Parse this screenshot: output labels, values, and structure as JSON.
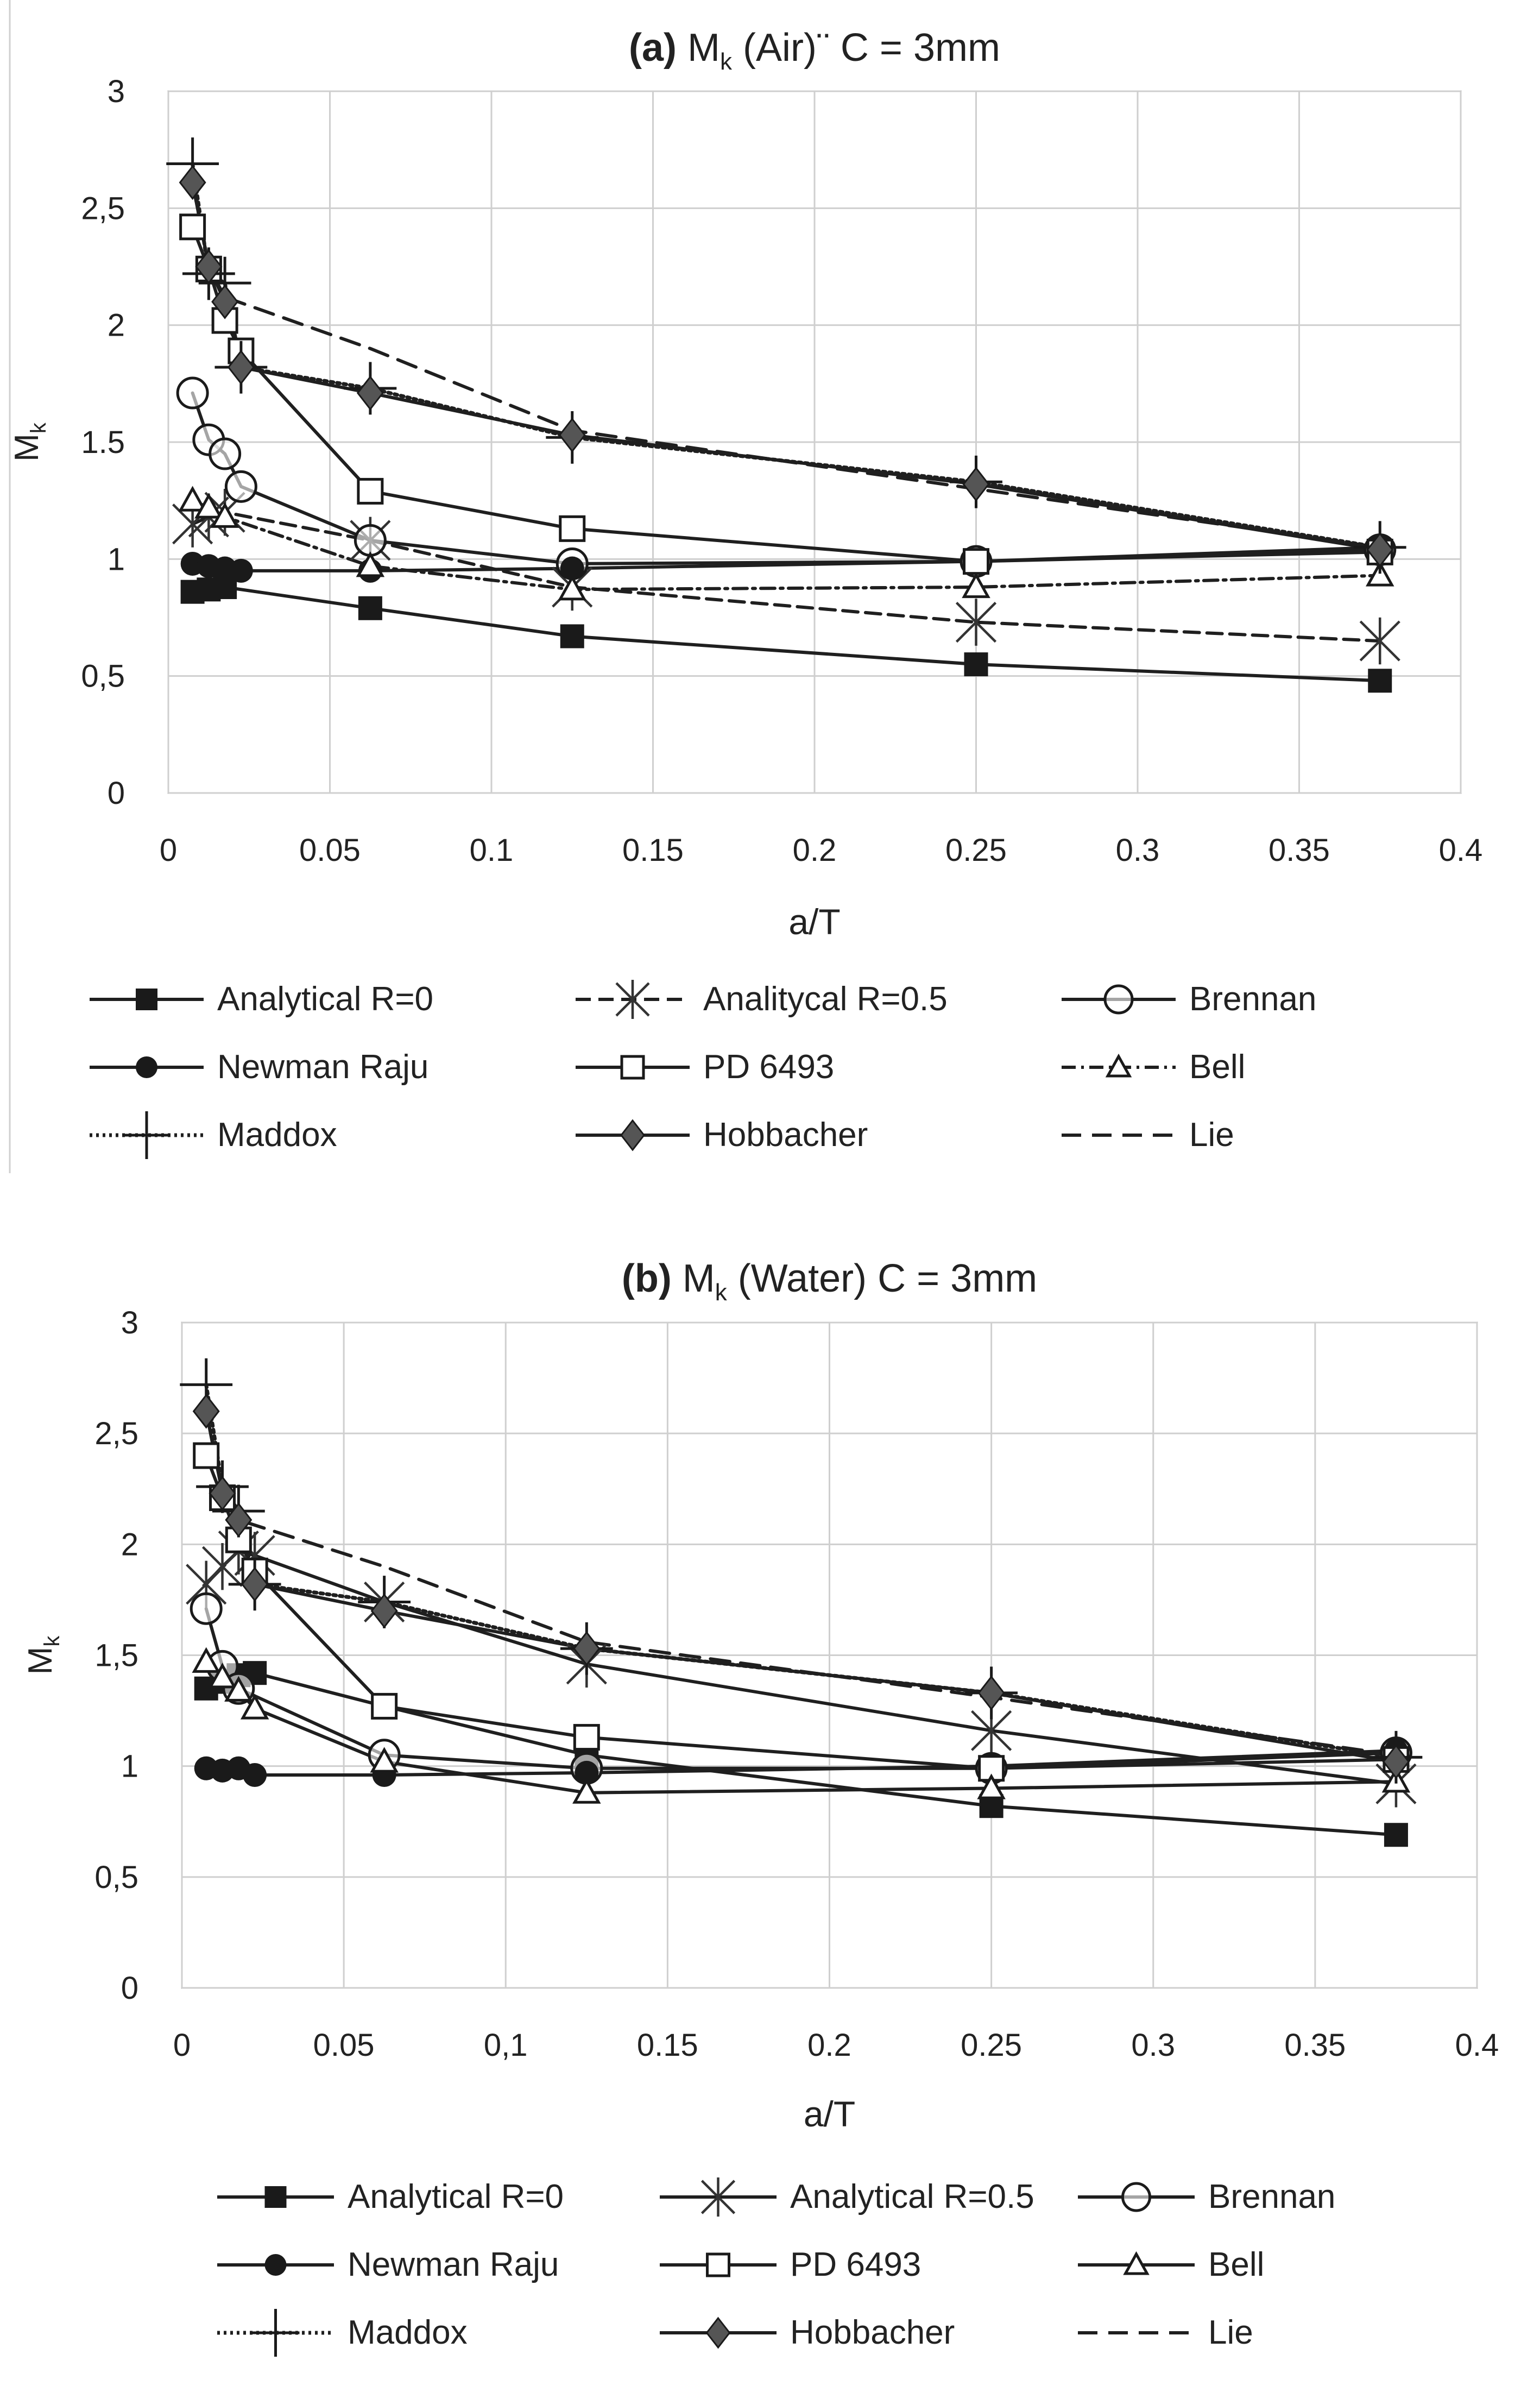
{
  "chart_data": [
    {
      "type": "line",
      "panel_label": "(a)",
      "title_main": "M",
      "title_sub": "k",
      "title_rest": "(Air)¨ C = 3mm",
      "xlabel": "a/T",
      "ylabel_main": "M",
      "ylabel_sub": "k",
      "xlim": [
        0,
        0.4
      ],
      "ylim": [
        0,
        3
      ],
      "xticks": [
        "0",
        "0.05",
        "0.1",
        "0.15",
        "0.2",
        "0.25",
        "0.3",
        "0.35",
        "0.4"
      ],
      "yticks": [
        "0",
        "0,5",
        "1",
        "1.5",
        "2",
        "2,5",
        "3"
      ],
      "grid": true,
      "series": [
        {
          "name": "Analytical R=0",
          "style": "solid",
          "marker": "square-filled",
          "x": [
            0.0075,
            0.0125,
            0.0175,
            0.0625,
            0.125,
            0.25,
            0.375
          ],
          "y": [
            0.86,
            0.87,
            0.88,
            0.79,
            0.67,
            0.55,
            0.48
          ]
        },
        {
          "name": "Analitycal R=0.5",
          "style": "dashed",
          "marker": "asterisk",
          "x": [
            0.0075,
            0.0125,
            0.0175,
            0.0625,
            0.125,
            0.25,
            0.375
          ],
          "y": [
            1.15,
            1.18,
            1.2,
            1.08,
            0.88,
            0.73,
            0.65
          ]
        },
        {
          "name": "Brennan",
          "style": "solid",
          "marker": "circle-open",
          "x": [
            0.0075,
            0.0125,
            0.0175,
            0.0225,
            0.0625,
            0.125,
            0.25,
            0.375
          ],
          "y": [
            1.71,
            1.51,
            1.45,
            1.31,
            1.08,
            0.98,
            0.99,
            1.04
          ]
        },
        {
          "name": "Newman Raju",
          "style": "solid",
          "marker": "circle-filled",
          "x": [
            0.0075,
            0.0125,
            0.0175,
            0.0225,
            0.0625,
            0.125,
            0.25,
            0.375
          ],
          "y": [
            0.98,
            0.97,
            0.96,
            0.95,
            0.95,
            0.96,
            0.99,
            1.05
          ]
        },
        {
          "name": "PD 6493",
          "style": "solid",
          "marker": "square-open",
          "x": [
            0.0075,
            0.0125,
            0.0175,
            0.0225,
            0.0625,
            0.125,
            0.25,
            0.375
          ],
          "y": [
            2.42,
            2.24,
            2.02,
            1.89,
            1.29,
            1.13,
            0.99,
            1.03
          ]
        },
        {
          "name": "Bell",
          "style": "dashdot",
          "marker": "triangle-open",
          "x": [
            0.0075,
            0.0125,
            0.0175,
            0.0625,
            0.125,
            0.25,
            0.375
          ],
          "y": [
            1.25,
            1.22,
            1.18,
            0.97,
            0.87,
            0.88,
            0.93
          ]
        },
        {
          "name": "Maddox",
          "style": "dotted",
          "marker": "plus",
          "x": [
            0.0075,
            0.0125,
            0.0175,
            0.0225,
            0.0625,
            0.125,
            0.25,
            0.375
          ],
          "y": [
            2.69,
            2.22,
            2.18,
            1.82,
            1.73,
            1.52,
            1.33,
            1.05
          ]
        },
        {
          "name": "Hobbacher",
          "style": "solid",
          "marker": "diamond-filled",
          "x": [
            0.0075,
            0.0125,
            0.0175,
            0.0225,
            0.0625,
            0.125,
            0.25,
            0.375
          ],
          "y": [
            2.61,
            2.25,
            2.1,
            1.82,
            1.71,
            1.53,
            1.32,
            1.04
          ]
        },
        {
          "name": "Lie",
          "style": "dashed-long",
          "marker": "none",
          "x": [
            0.0075,
            0.0125,
            0.0175,
            0.0625,
            0.125,
            0.25,
            0.375
          ],
          "y": [
            2.61,
            2.25,
            2.12,
            1.9,
            1.55,
            1.3,
            1.05
          ]
        }
      ]
    },
    {
      "type": "line",
      "panel_label": "(b)",
      "title_main": "M",
      "title_sub": "k",
      "title_rest": "(Water)  C = 3mm",
      "xlabel": "a/T",
      "ylabel_main": "M",
      "ylabel_sub": "k",
      "xlim": [
        0,
        0.4
      ],
      "ylim": [
        0,
        3
      ],
      "xticks": [
        "0",
        "0.05",
        "0,1",
        "0.15",
        "0.2",
        "0.25",
        "0.3",
        "0.35",
        "0.4"
      ],
      "yticks": [
        "0",
        "0,5",
        "1",
        "1,5",
        "2",
        "2,5",
        "3"
      ],
      "grid": true,
      "series": [
        {
          "name": "Analytical R=0",
          "style": "solid",
          "marker": "square-filled",
          "x": [
            0.0075,
            0.0125,
            0.0175,
            0.0225,
            0.0625,
            0.125,
            0.25,
            0.375
          ],
          "y": [
            1.35,
            1.38,
            1.41,
            1.42,
            1.27,
            1.05,
            0.82,
            0.69
          ]
        },
        {
          "name": "Analytical R=0.5",
          "style": "solid",
          "marker": "asterisk",
          "x": [
            0.0075,
            0.0125,
            0.0175,
            0.0225,
            0.0625,
            0.125,
            0.25,
            0.375
          ],
          "y": [
            1.82,
            1.9,
            1.97,
            1.95,
            1.74,
            1.46,
            1.16,
            0.92
          ]
        },
        {
          "name": "Brennan",
          "style": "solid",
          "marker": "circle-open",
          "x": [
            0.0075,
            0.0125,
            0.0175,
            0.0625,
            0.125,
            0.25,
            0.375
          ],
          "y": [
            1.71,
            1.45,
            1.35,
            1.05,
            0.99,
            0.99,
            1.06
          ]
        },
        {
          "name": "Newman Raju",
          "style": "solid",
          "marker": "circle-filled",
          "x": [
            0.0075,
            0.0125,
            0.0175,
            0.0225,
            0.0625,
            0.125,
            0.25,
            0.375
          ],
          "y": [
            0.99,
            0.98,
            0.99,
            0.96,
            0.96,
            0.97,
            1.0,
            1.07
          ]
        },
        {
          "name": "PD 6493",
          "style": "solid",
          "marker": "square-open",
          "x": [
            0.0075,
            0.0125,
            0.0175,
            0.0225,
            0.0625,
            0.125,
            0.25,
            0.375
          ],
          "y": [
            2.4,
            2.21,
            2.02,
            1.88,
            1.27,
            1.13,
            0.99,
            1.03
          ]
        },
        {
          "name": "Bell",
          "style": "solid",
          "marker": "triangle-open",
          "x": [
            0.0075,
            0.0125,
            0.0175,
            0.0225,
            0.0625,
            0.125,
            0.25,
            0.375
          ],
          "y": [
            1.47,
            1.4,
            1.34,
            1.26,
            1.02,
            0.88,
            0.9,
            0.93
          ]
        },
        {
          "name": "Maddox",
          "style": "dotted",
          "marker": "plus",
          "x": [
            0.0075,
            0.0125,
            0.0175,
            0.0225,
            0.0625,
            0.125,
            0.25,
            0.375
          ],
          "y": [
            2.72,
            2.26,
            2.15,
            1.82,
            1.74,
            1.53,
            1.33,
            1.04
          ]
        },
        {
          "name": "Hobbacher",
          "style": "solid",
          "marker": "diamond-filled",
          "x": [
            0.0075,
            0.0125,
            0.0175,
            0.0225,
            0.0625,
            0.125,
            0.25,
            0.375
          ],
          "y": [
            2.6,
            2.23,
            2.11,
            1.82,
            1.7,
            1.53,
            1.33,
            1.02
          ]
        },
        {
          "name": "Lie",
          "style": "dashed-long",
          "marker": "none",
          "x": [
            0.0075,
            0.0125,
            0.0175,
            0.0625,
            0.125,
            0.25,
            0.375
          ],
          "y": [
            2.6,
            2.25,
            2.11,
            1.9,
            1.56,
            1.31,
            1.05
          ]
        }
      ]
    }
  ]
}
